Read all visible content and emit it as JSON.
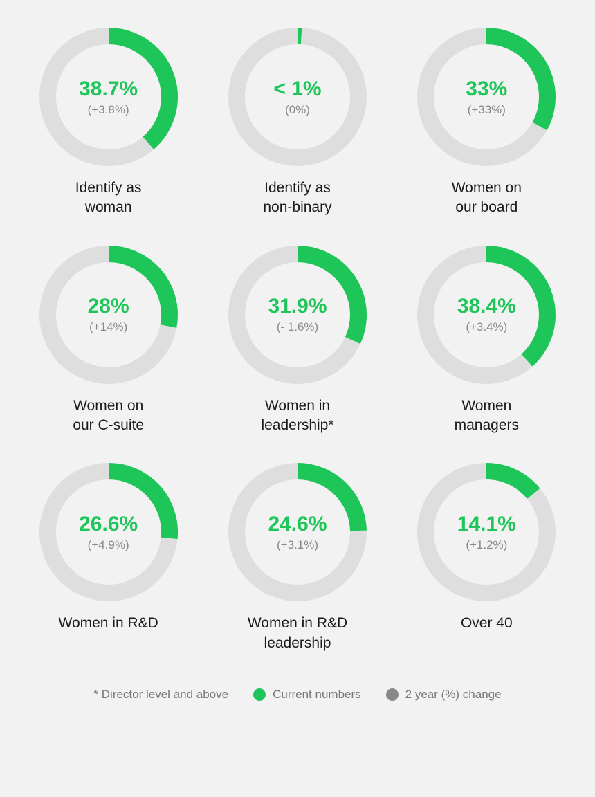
{
  "layout": {
    "background_color": "#f2f2f2",
    "ring_size": 200,
    "ring_stroke": 24,
    "track_color": "#dedede",
    "progress_color": "#1ec65a",
    "value_color": "#1ec65a",
    "change_color": "#888888",
    "caption_color": "#1a1a1a",
    "value_fontsize": 30,
    "change_fontsize": 17,
    "caption_fontsize": 21
  },
  "metrics": [
    {
      "id": "identify-woman",
      "value": "38.7%",
      "pct": 38.7,
      "change": "(+3.8%)",
      "caption": "Identify as\nwoman"
    },
    {
      "id": "identify-nonbinary",
      "value": "< 1%",
      "pct": 1,
      "change": "(0%)",
      "caption": "Identify as\nnon-binary"
    },
    {
      "id": "women-board",
      "value": "33%",
      "pct": 33,
      "change": "(+33%)",
      "caption": "Women on\nour board"
    },
    {
      "id": "women-csuite",
      "value": "28%",
      "pct": 28,
      "change": "(+14%)",
      "caption": "Women on\nour C-suite"
    },
    {
      "id": "women-leadership",
      "value": "31.9%",
      "pct": 31.9,
      "change": "(- 1.6%)",
      "caption": "Women in\nleadership*"
    },
    {
      "id": "women-managers",
      "value": "38.4%",
      "pct": 38.4,
      "change": "(+3.4%)",
      "caption": "Women\nmanagers"
    },
    {
      "id": "women-rd",
      "value": "26.6%",
      "pct": 26.6,
      "change": "(+4.9%)",
      "caption": "Women in R&D"
    },
    {
      "id": "women-rd-leadership",
      "value": "24.6%",
      "pct": 24.6,
      "change": "(+3.1%)",
      "caption": "Women in R&D\nleadership"
    },
    {
      "id": "over-40",
      "value": "14.1%",
      "pct": 14.1,
      "change": "(+1.2%)",
      "caption": "Over 40"
    }
  ],
  "legend": {
    "note": "* Director level and above",
    "current_label": "Current numbers",
    "current_color": "#1ec65a",
    "change_label": "2 year (%) change",
    "change_color": "#888888"
  }
}
